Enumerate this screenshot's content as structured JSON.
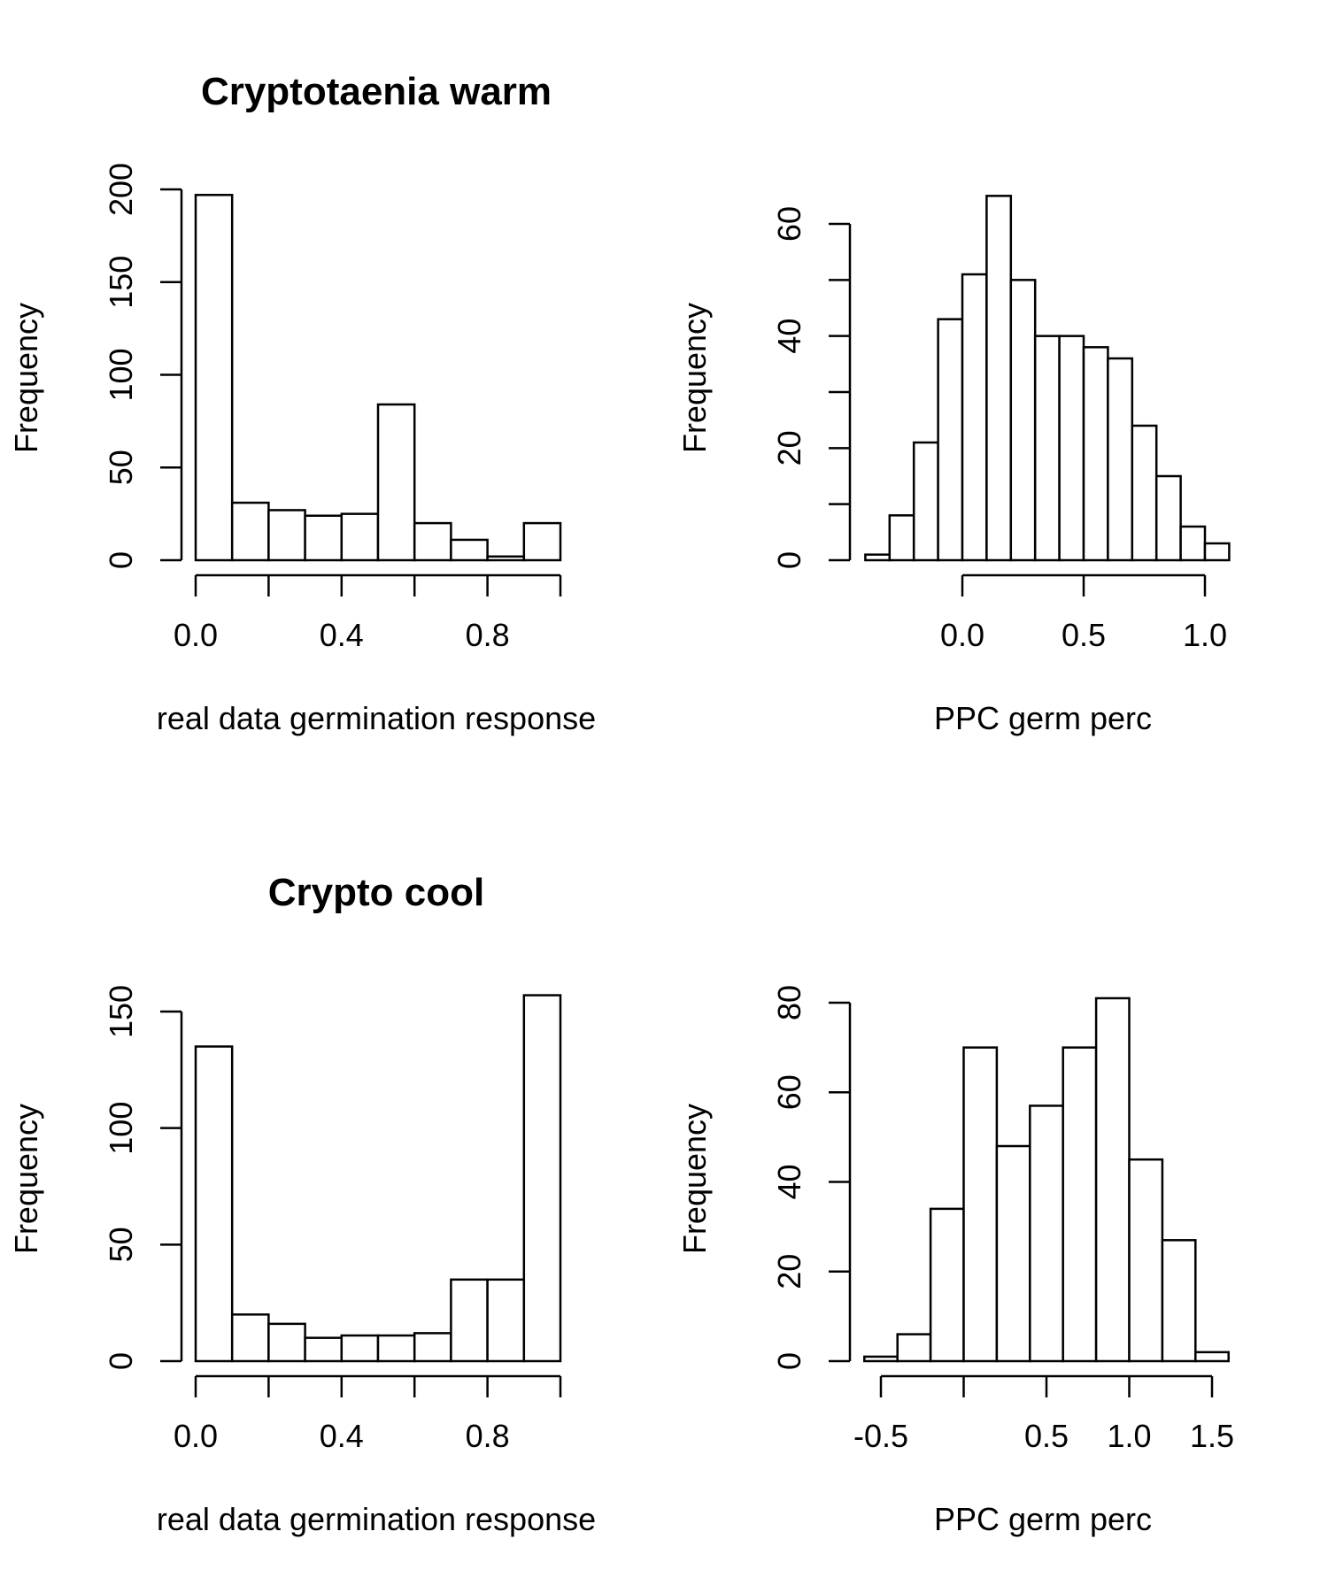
{
  "chart_data": [
    {
      "type": "bar",
      "title": "Cryptotaenia warm",
      "xlabel": "real data germination response",
      "ylabel": "Frequency",
      "bin_edges": [
        0.0,
        0.1,
        0.2,
        0.3,
        0.4,
        0.5,
        0.6,
        0.7,
        0.8,
        0.9,
        1.0
      ],
      "values": [
        197,
        31,
        27,
        24,
        25,
        84,
        20,
        11,
        2,
        20
      ],
      "xticks": [
        0.0,
        0.2,
        0.4,
        0.6,
        0.8,
        1.0
      ],
      "xtick_labels": [
        "0.0",
        "",
        "0.4",
        "",
        "0.8",
        ""
      ],
      "yticks": [
        0,
        50,
        100,
        150,
        200
      ],
      "ytick_labels": [
        "0",
        "50",
        "100",
        "150",
        "200"
      ],
      "xlim": [
        0.0,
        1.0
      ],
      "ylim": [
        0,
        200
      ]
    },
    {
      "type": "bar",
      "title": "",
      "xlabel": "PPC germ perc",
      "ylabel": "Frequency",
      "bin_edges": [
        -0.4,
        -0.3,
        -0.2,
        -0.1,
        0.0,
        0.1,
        0.2,
        0.3,
        0.4,
        0.5,
        0.6,
        0.7,
        0.8,
        0.9,
        1.0,
        1.1
      ],
      "values": [
        1,
        8,
        21,
        43,
        51,
        65,
        50,
        40,
        40,
        38,
        36,
        24,
        15,
        6,
        3
      ],
      "xticks": [
        0.0,
        0.5,
        1.0
      ],
      "xtick_labels": [
        "0.0",
        "0.5",
        "1.0"
      ],
      "yticks": [
        0,
        10,
        20,
        30,
        40,
        50,
        60
      ],
      "ytick_labels": [
        "0",
        "",
        "20",
        "",
        "40",
        "",
        "60"
      ],
      "xlim": [
        -0.4,
        1.1
      ],
      "ylim": [
        0,
        60
      ]
    },
    {
      "type": "bar",
      "title": "Crypto cool",
      "xlabel": "real data germination response",
      "ylabel": "Frequency",
      "bin_edges": [
        0.0,
        0.1,
        0.2,
        0.3,
        0.4,
        0.5,
        0.6,
        0.7,
        0.8,
        0.9,
        1.0
      ],
      "values": [
        135,
        20,
        16,
        10,
        11,
        11,
        12,
        35,
        35,
        157
      ],
      "xticks": [
        0.0,
        0.2,
        0.4,
        0.6,
        0.8,
        1.0
      ],
      "xtick_labels": [
        "0.0",
        "",
        "0.4",
        "",
        "0.8",
        ""
      ],
      "yticks": [
        0,
        50,
        100,
        150
      ],
      "ytick_labels": [
        "0",
        "50",
        "100",
        "150"
      ],
      "xlim": [
        0.0,
        1.0
      ],
      "ylim": [
        0,
        150
      ]
    },
    {
      "type": "bar",
      "title": "",
      "xlabel": "PPC germ perc",
      "ylabel": "Frequency",
      "bin_edges": [
        -0.6,
        -0.4,
        -0.2,
        0.0,
        0.2,
        0.4,
        0.6,
        0.8,
        1.0,
        1.2,
        1.4,
        1.6
      ],
      "values": [
        1,
        6,
        34,
        70,
        48,
        57,
        70,
        81,
        45,
        27,
        2
      ],
      "xticks": [
        -0.5,
        0.0,
        0.5,
        1.0,
        1.5
      ],
      "xtick_labels": [
        "-0.5",
        "",
        "0.5",
        "1.0",
        "1.5"
      ],
      "yticks": [
        0,
        20,
        40,
        60,
        80
      ],
      "ytick_labels": [
        "0",
        "20",
        "40",
        "60",
        "80"
      ],
      "xlim": [
        -0.6,
        1.6
      ],
      "ylim": [
        0,
        80
      ]
    }
  ]
}
